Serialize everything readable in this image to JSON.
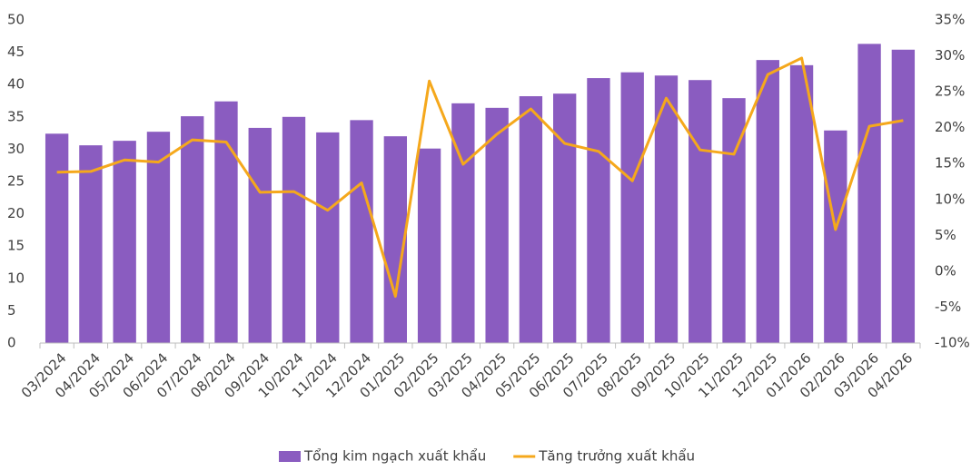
{
  "chart_data": {
    "type": "bar_line",
    "categories": [
      "03/2024",
      "04/2024",
      "05/2024",
      "06/2024",
      "07/2024",
      "08/2024",
      "09/2024",
      "10/2024",
      "11/2024",
      "12/2024",
      "01/2025",
      "02/2025",
      "03/2025",
      "04/2025",
      "05/2025",
      "06/2025",
      "07/2025",
      "08/2025",
      "09/2025",
      "10/2025",
      "11/2025",
      "12/2025",
      "01/2026",
      "02/2026",
      "03/2026",
      "04/2026"
    ],
    "series": [
      {
        "name": "Tổng kim ngạch xuất khẩu",
        "type": "bar",
        "color": "#8a5cc0",
        "values": [
          32.4,
          30.6,
          31.3,
          32.7,
          35.1,
          37.4,
          33.3,
          35.0,
          32.6,
          34.5,
          32.0,
          30.1,
          37.1,
          36.4,
          38.2,
          38.6,
          41.0,
          41.9,
          41.4,
          40.7,
          37.9,
          43.8,
          43.0,
          32.9,
          46.3,
          45.4
        ]
      },
      {
        "name": "Tăng trưởng xuất khẩu",
        "type": "line",
        "axis": "y2",
        "color": "#f5a81c",
        "values": [
          13.8,
          13.9,
          15.5,
          15.2,
          18.3,
          18.0,
          11.0,
          11.1,
          8.5,
          12.3,
          -3.5,
          26.5,
          14.9,
          19.1,
          22.6,
          17.8,
          16.7,
          12.6,
          24.1,
          16.9,
          16.3,
          27.4,
          29.7,
          5.8,
          20.2,
          21.0
        ]
      }
    ],
    "ylim": [
      0,
      50
    ],
    "yticks": [
      0,
      5,
      10,
      15,
      20,
      25,
      30,
      35,
      40,
      45,
      50
    ],
    "y2lim": [
      -10,
      35
    ],
    "y2ticks": [
      {
        "value": -10,
        "label": "-10%"
      },
      {
        "value": -5,
        "label": "-5%"
      },
      {
        "value": 0,
        "label": "0%"
      },
      {
        "value": 5,
        "label": "5%"
      },
      {
        "value": 10,
        "label": "10%"
      },
      {
        "value": 15,
        "label": "15%"
      },
      {
        "value": 20,
        "label": "20%"
      },
      {
        "value": 25,
        "label": "25%"
      },
      {
        "value": 30,
        "label": "30%"
      },
      {
        "value": 35,
        "label": "35%"
      }
    ],
    "legend": "bottom"
  }
}
